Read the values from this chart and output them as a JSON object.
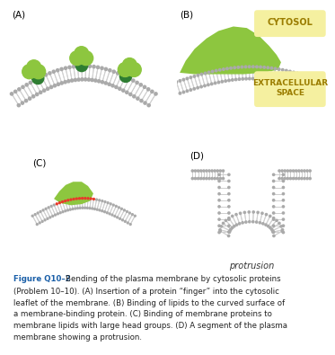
{
  "bg_color": "#ffffff",
  "green_color": "#8dc63f",
  "dark_green_color": "#2e7d32",
  "red_color": "#e8392a",
  "gray_head": "#aaaaaa",
  "gray_tail": "#d0d0d0",
  "cytosol_box_color": "#f5f0a0",
  "cytosol_text_color": "#9b7d00",
  "fig_label_color": "#1a5fa8",
  "fig_text_color": "#222222",
  "panel_labels": [
    "(A)",
    "(B)",
    "(C)",
    "(D)"
  ],
  "cytosol_text": "CYTOSOL",
  "extracellular_text": "EXTRACELLULAR\nSPACE",
  "protrusion_text": "protrusion"
}
